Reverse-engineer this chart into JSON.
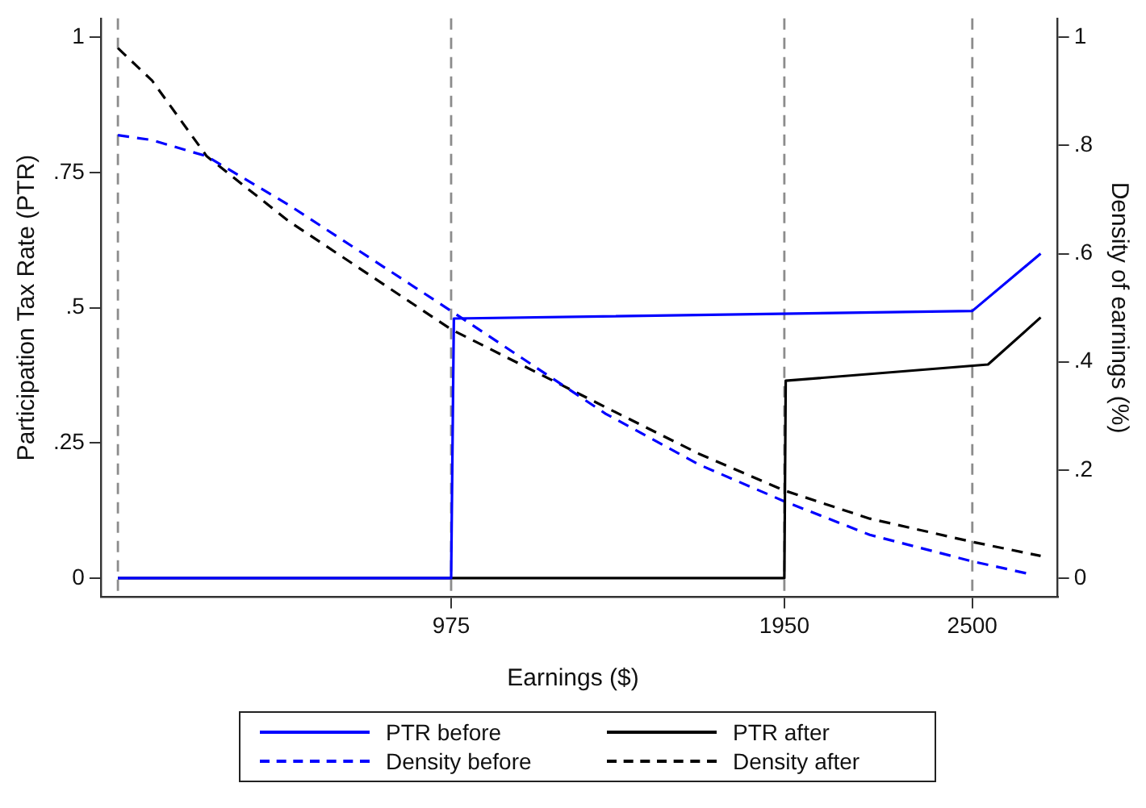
{
  "chart_data": {
    "type": "line",
    "xlabel": "Earnings ($)",
    "ylabel": "Participation Tax Rate (PTR)",
    "y2label": "Density of earnings (%)",
    "xlim": [
      -50,
      2750
    ],
    "xticks": [
      975,
      1950,
      2500
    ],
    "ylim": [
      -0.035,
      1.035
    ],
    "yticks": [
      0,
      {
        "value": 0.25,
        "label": ".25"
      },
      {
        "value": 0.5,
        "label": ".5"
      },
      {
        "value": 0.75,
        "label": ".75"
      },
      1
    ],
    "y2lim": [
      -0.035,
      1.035
    ],
    "y2ticks": [
      0,
      {
        "value": 0.2,
        "label": ".2"
      },
      {
        "value": 0.4,
        "label": ".4"
      },
      {
        "value": 0.6,
        "label": ".6"
      },
      {
        "value": 0.8,
        "label": ".8"
      },
      1
    ],
    "grid": false,
    "legend": "bottom",
    "marker": "none",
    "ref_lines": [
      {
        "axis": "x",
        "value": 0,
        "color": "#8c8c8c",
        "line_style": "dashed"
      },
      {
        "axis": "x",
        "value": 975,
        "color": "#8c8c8c",
        "line_style": "dashed"
      },
      {
        "axis": "x",
        "value": 1950,
        "color": "#8c8c8c",
        "line_style": "dashed"
      },
      {
        "axis": "x",
        "value": 2500,
        "color": "#8c8c8c",
        "line_style": "dashed"
      }
    ],
    "series": [
      {
        "name": "PTR before",
        "color": "#0000ff",
        "line_style": "solid",
        "x": [
          0,
          975,
          983,
          2500,
          2700
        ],
        "values": [
          0,
          0,
          0.48,
          0.494,
          0.6
        ]
      },
      {
        "name": "PTR after",
        "color": "#000000",
        "line_style": "solid",
        "x": [
          0,
          1950,
          1954,
          2546,
          2700
        ],
        "values": [
          0,
          0,
          0.365,
          0.395,
          0.482
        ]
      },
      {
        "name": "Density before",
        "color": "#0000ff",
        "line_style": "dashed",
        "x": [
          0,
          100,
          260,
          500,
          975,
          1427,
          1700,
          1950,
          2200,
          2500,
          2672
        ],
        "values": [
          0.819,
          0.81,
          0.78,
          0.69,
          0.494,
          0.304,
          0.21,
          0.142,
          0.08,
          0.031,
          0.007
        ]
      },
      {
        "name": "Density after",
        "color": "#000000",
        "line_style": "dashed",
        "x": [
          0,
          100,
          260,
          500,
          975,
          1427,
          1700,
          1950,
          2200,
          2500,
          2700
        ],
        "values": [
          0.98,
          0.92,
          0.78,
          0.66,
          0.46,
          0.316,
          0.23,
          0.162,
          0.11,
          0.067,
          0.041
        ]
      }
    ]
  }
}
